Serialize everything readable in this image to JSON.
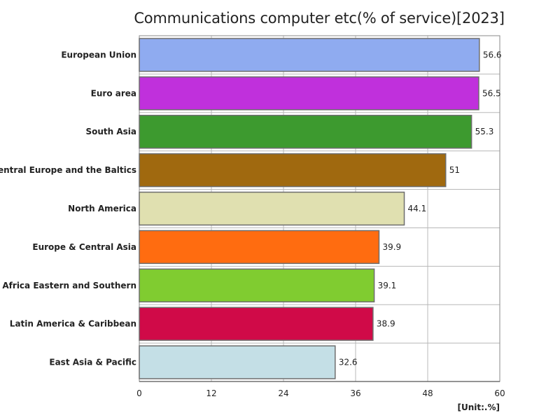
{
  "chart_data": {
    "type": "bar",
    "orientation": "horizontal",
    "title": "Communications computer etc(% of service)[2023]",
    "unit_label": "[Unit:.%]",
    "categories": [
      "European Union",
      "Euro area",
      "South Asia",
      "Central Europe and the Baltics",
      "North America",
      "Europe & Central Asia",
      "Africa Eastern and Southern",
      "Latin America & Caribbean",
      "East Asia & Pacific"
    ],
    "values": [
      56.6,
      56.5,
      55.3,
      51,
      44.1,
      39.9,
      39.1,
      38.9,
      32.6
    ],
    "value_labels": [
      "56.6",
      "56.5",
      "55.3",
      "51",
      "44.1",
      "39.9",
      "39.1",
      "38.9",
      "32.6"
    ],
    "colors": [
      "#8fabf0",
      "#c030dc",
      "#3d9a2f",
      "#a0690f",
      "#e0e0b0",
      "#ff6c10",
      "#80cc30",
      "#d00a48",
      "#c4dfe6"
    ],
    "xlim": [
      0,
      60
    ],
    "xticks": [
      "0",
      "12",
      "24",
      "36",
      "48",
      "60"
    ],
    "grid": true
  }
}
